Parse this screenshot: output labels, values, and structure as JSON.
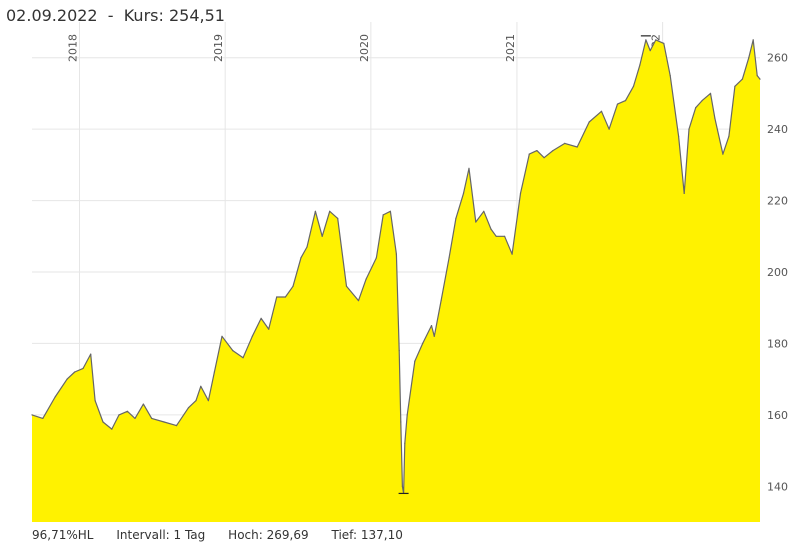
{
  "header": {
    "date": "02.09.2022",
    "separator": "  -  ",
    "price_label": "Kurs: ",
    "price_value": "254,51"
  },
  "footer": {
    "hl_percent": "96,71%HL",
    "interval_label": "Intervall: ",
    "interval_value": "1 Tag",
    "high_label": "Hoch: ",
    "high_value": "269,69",
    "low_label": "Tief: ",
    "low_value": "137,10"
  },
  "colors": {
    "fill": "#fff200",
    "line": "#666666",
    "grid": "#e6e6e6",
    "text": "#333333"
  },
  "chart_data": {
    "type": "area",
    "title": "",
    "xlabel": "",
    "ylabel": "",
    "x_ticks": [
      "2018",
      "2019",
      "2020",
      "2021",
      "2022"
    ],
    "y_ticks": [
      140,
      160,
      180,
      200,
      220,
      240,
      260
    ],
    "xlim": [
      "2017-09-04",
      "2022-09-02"
    ],
    "ylim": [
      130,
      270
    ],
    "grid": true,
    "series": [
      {
        "name": "",
        "x": [
          "2017-09-04",
          "2017-10-01",
          "2017-11-01",
          "2017-12-01",
          "2017-12-20",
          "2018-01-10",
          "2018-01-29",
          "2018-02-09",
          "2018-03-01",
          "2018-03-23",
          "2018-04-10",
          "2018-05-01",
          "2018-05-20",
          "2018-06-10",
          "2018-07-01",
          "2018-08-01",
          "2018-09-01",
          "2018-10-01",
          "2018-10-20",
          "2018-11-01",
          "2018-11-20",
          "2018-12-05",
          "2018-12-24",
          "2019-01-20",
          "2019-02-15",
          "2019-03-10",
          "2019-04-01",
          "2019-04-20",
          "2019-05-10",
          "2019-06-01",
          "2019-06-20",
          "2019-07-10",
          "2019-07-25",
          "2019-08-15",
          "2019-09-01",
          "2019-09-20",
          "2019-10-10",
          "2019-11-01",
          "2019-12-01",
          "2019-12-20",
          "2020-01-15",
          "2020-02-01",
          "2020-02-19",
          "2020-03-05",
          "2020-03-12",
          "2020-03-16",
          "2020-03-20",
          "2020-03-23",
          "2020-03-26",
          "2020-04-01",
          "2020-04-20",
          "2020-05-10",
          "2020-06-01",
          "2020-06-08",
          "2020-06-25",
          "2020-07-15",
          "2020-08-01",
          "2020-08-20",
          "2020-09-03",
          "2020-09-20",
          "2020-10-10",
          "2020-10-28",
          "2020-11-10",
          "2020-12-01",
          "2020-12-20",
          "2021-01-10",
          "2021-02-01",
          "2021-02-20",
          "2021-03-10",
          "2021-04-01",
          "2021-05-01",
          "2021-06-01",
          "2021-07-01",
          "2021-08-01",
          "2021-08-20",
          "2021-09-10",
          "2021-09-30",
          "2021-10-20",
          "2021-11-05",
          "2021-11-20",
          "2021-12-01",
          "2021-12-15",
          "2022-01-04",
          "2022-01-20",
          "2022-02-10",
          "2022-02-24",
          "2022-03-08",
          "2022-03-25",
          "2022-04-10",
          "2022-05-01",
          "2022-05-12",
          "2022-06-01",
          "2022-06-16",
          "2022-07-01",
          "2022-07-20",
          "2022-08-05",
          "2022-08-16",
          "2022-08-26",
          "2022-09-02"
        ],
        "y": [
          160,
          159,
          165,
          170,
          172,
          173,
          177,
          164,
          158,
          156,
          160,
          161,
          159,
          163,
          159,
          158,
          157,
          162,
          164,
          168,
          164,
          172,
          182,
          178,
          176,
          182,
          187,
          184,
          193,
          193,
          196,
          204,
          207,
          217,
          210,
          217,
          215,
          196,
          192,
          198,
          204,
          216,
          217,
          205,
          178,
          158,
          140,
          138,
          152,
          160,
          175,
          180,
          185,
          182,
          192,
          204,
          215,
          222,
          229,
          214,
          217,
          212,
          210,
          210,
          205,
          222,
          233,
          234,
          232,
          234,
          236,
          235,
          242,
          245,
          240,
          247,
          248,
          252,
          258,
          265,
          262,
          265,
          264,
          255,
          238,
          222,
          240,
          246,
          248,
          250,
          243,
          233,
          238,
          252,
          254,
          260,
          265,
          255,
          254
        ]
      }
    ]
  }
}
